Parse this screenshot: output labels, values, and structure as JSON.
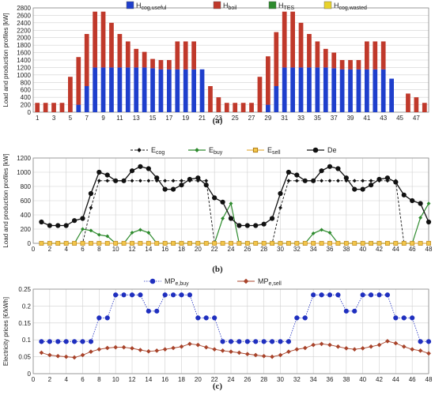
{
  "chart_data": [
    {
      "type": "bar",
      "panel_label": "(a)",
      "ylabel": "Load and production profiles [kW]",
      "ylim": [
        0,
        2800
      ],
      "yticks": [
        0,
        200,
        400,
        600,
        800,
        1000,
        1200,
        1400,
        1600,
        1800,
        2000,
        2200,
        2400,
        2600,
        2800
      ],
      "x": [
        1,
        2,
        3,
        4,
        5,
        6,
        7,
        8,
        9,
        10,
        11,
        12,
        13,
        14,
        15,
        16,
        17,
        18,
        19,
        20,
        21,
        22,
        23,
        24,
        25,
        26,
        27,
        28,
        29,
        30,
        31,
        32,
        33,
        34,
        35,
        36,
        37,
        38,
        39,
        40,
        41,
        42,
        43,
        44,
        45,
        46,
        47,
        48
      ],
      "xtick_labels": [
        "1",
        "3",
        "5",
        "7",
        "9",
        "11",
        "13",
        "15",
        "17",
        "19",
        "21",
        "23",
        "25",
        "27",
        "29",
        "31",
        "33",
        "35",
        "37",
        "39",
        "41",
        "43",
        "45",
        "47"
      ],
      "legend_position": "top",
      "series": [
        {
          "name": "H cog,useful",
          "color": "#1f3fcc",
          "values": [
            0,
            0,
            0,
            0,
            0,
            200,
            700,
            1200,
            1200,
            1200,
            1200,
            1200,
            1200,
            1200,
            1180,
            1150,
            1150,
            1150,
            1150,
            1150,
            1150,
            0,
            0,
            0,
            0,
            0,
            0,
            0,
            200,
            700,
            1200,
            1200,
            1200,
            1200,
            1200,
            1200,
            1180,
            1150,
            1150,
            1150,
            1150,
            1150,
            1150,
            900,
            0,
            0,
            0,
            0
          ]
        },
        {
          "name": "H boil",
          "color": "#c0392b",
          "values": [
            250,
            250,
            250,
            250,
            950,
            1280,
            1400,
            1500,
            1500,
            1200,
            900,
            700,
            500,
            420,
            250,
            250,
            250,
            750,
            750,
            750,
            0,
            700,
            400,
            250,
            250,
            250,
            250,
            950,
            1300,
            1450,
            1500,
            1500,
            1200,
            900,
            700,
            500,
            420,
            250,
            250,
            250,
            750,
            750,
            750,
            0,
            0,
            500,
            400,
            250
          ]
        },
        {
          "name": "H TES",
          "color": "#2e8b2e",
          "values": [
            0,
            0,
            0,
            0,
            0,
            0,
            0,
            0,
            0,
            0,
            0,
            0,
            0,
            0,
            0,
            0,
            0,
            0,
            0,
            0,
            0,
            0,
            0,
            0,
            0,
            0,
            0,
            0,
            0,
            0,
            0,
            0,
            0,
            0,
            0,
            0,
            0,
            0,
            0,
            0,
            0,
            0,
            0,
            0,
            0,
            0,
            0,
            0
          ]
        },
        {
          "name": "H cog,wasted",
          "color": "#e8d22c",
          "values": [
            0,
            0,
            0,
            0,
            0,
            0,
            0,
            0,
            0,
            0,
            0,
            0,
            0,
            0,
            0,
            0,
            0,
            0,
            0,
            0,
            0,
            0,
            0,
            0,
            0,
            0,
            0,
            0,
            0,
            0,
            0,
            0,
            0,
            0,
            0,
            0,
            0,
            0,
            0,
            0,
            0,
            0,
            0,
            0,
            0,
            0,
            0,
            0
          ]
        }
      ]
    },
    {
      "type": "line",
      "panel_label": "(b)",
      "ylabel": "Load and production profiles [kW]",
      "ylim": [
        0,
        1200
      ],
      "yticks": [
        0,
        200,
        400,
        600,
        800,
        1000,
        1200
      ],
      "xlim": [
        0,
        48
      ],
      "xticks": [
        0,
        2,
        4,
        6,
        8,
        10,
        12,
        14,
        16,
        18,
        20,
        22,
        24,
        26,
        28,
        30,
        32,
        34,
        36,
        38,
        40,
        42,
        44,
        46,
        48
      ],
      "x": [
        1,
        2,
        3,
        4,
        5,
        6,
        7,
        8,
        9,
        10,
        11,
        12,
        13,
        14,
        15,
        16,
        17,
        18,
        19,
        20,
        21,
        22,
        23,
        24,
        25,
        26,
        27,
        28,
        29,
        30,
        31,
        32,
        33,
        34,
        35,
        36,
        37,
        38,
        39,
        40,
        41,
        42,
        43,
        44,
        45,
        46,
        47,
        48
      ],
      "legend_position": "top",
      "series": [
        {
          "name": "E cog",
          "color": "#111111",
          "values": [
            0,
            0,
            0,
            0,
            0,
            0,
            500,
            880,
            880,
            880,
            880,
            880,
            880,
            880,
            880,
            880,
            880,
            880,
            880,
            880,
            880,
            0,
            0,
            0,
            0,
            0,
            0,
            0,
            0,
            500,
            880,
            880,
            880,
            880,
            880,
            880,
            880,
            880,
            880,
            880,
            880,
            880,
            880,
            880,
            0,
            0,
            0,
            0
          ]
        },
        {
          "name": "E buy",
          "color": "#2e8b2e",
          "values": [
            0,
            0,
            0,
            0,
            0,
            200,
            180,
            120,
            100,
            0,
            0,
            150,
            190,
            150,
            0,
            0,
            0,
            0,
            0,
            0,
            0,
            0,
            350,
            560,
            0,
            0,
            0,
            0,
            0,
            0,
            0,
            0,
            0,
            140,
            190,
            150,
            0,
            0,
            0,
            0,
            0,
            0,
            0,
            0,
            0,
            0,
            360,
            560
          ]
        },
        {
          "name": "E sell",
          "color": "#e2a21c",
          "values": [
            0,
            0,
            0,
            0,
            0,
            0,
            0,
            0,
            0,
            0,
            0,
            0,
            0,
            0,
            0,
            0,
            0,
            0,
            0,
            0,
            0,
            0,
            0,
            0,
            0,
            0,
            0,
            0,
            0,
            0,
            0,
            0,
            0,
            0,
            0,
            0,
            0,
            0,
            0,
            0,
            0,
            0,
            0,
            0,
            0,
            0,
            0,
            0
          ]
        },
        {
          "name": "De",
          "color": "#111111",
          "values": [
            300,
            250,
            250,
            250,
            320,
            350,
            700,
            1000,
            960,
            880,
            880,
            1020,
            1080,
            1050,
            920,
            760,
            760,
            820,
            900,
            920,
            820,
            640,
            580,
            350,
            250,
            250,
            250,
            270,
            350,
            700,
            1000,
            960,
            880,
            880,
            1020,
            1080,
            1050,
            920,
            760,
            760,
            820,
            900,
            920,
            860,
            680,
            600,
            560,
            300
          ]
        }
      ]
    },
    {
      "type": "line",
      "panel_label": "(c)",
      "ylabel": "Electricity prices [€/kWh]",
      "ylim": [
        0,
        0.25
      ],
      "yticks": [
        0,
        0.05,
        0.1,
        0.15,
        0.2,
        0.25
      ],
      "ytick_labels": [
        "0",
        "0.05",
        "0.1",
        "0.15",
        "0.2",
        "0.25"
      ],
      "xlim": [
        0,
        48
      ],
      "xticks": [
        0,
        2,
        4,
        6,
        8,
        10,
        12,
        14,
        16,
        18,
        20,
        22,
        24,
        26,
        28,
        30,
        32,
        34,
        36,
        38,
        40,
        42,
        44,
        46,
        48
      ],
      "x": [
        1,
        2,
        3,
        4,
        5,
        6,
        7,
        8,
        9,
        10,
        11,
        12,
        13,
        14,
        15,
        16,
        17,
        18,
        19,
        20,
        21,
        22,
        23,
        24,
        25,
        26,
        27,
        28,
        29,
        30,
        31,
        32,
        33,
        34,
        35,
        36,
        37,
        38,
        39,
        40,
        41,
        42,
        43,
        44,
        45,
        46,
        47,
        48
      ],
      "legend_position": "top",
      "series": [
        {
          "name": "MP e,buy",
          "color": "#1f2fbf",
          "values": [
            0.095,
            0.095,
            0.095,
            0.095,
            0.095,
            0.095,
            0.095,
            0.165,
            0.165,
            0.233,
            0.233,
            0.233,
            0.233,
            0.185,
            0.185,
            0.233,
            0.233,
            0.233,
            0.233,
            0.165,
            0.165,
            0.165,
            0.095,
            0.095,
            0.095,
            0.095,
            0.095,
            0.095,
            0.095,
            0.095,
            0.095,
            0.165,
            0.165,
            0.233,
            0.233,
            0.233,
            0.233,
            0.185,
            0.185,
            0.233,
            0.233,
            0.233,
            0.233,
            0.165,
            0.165,
            0.165,
            0.095,
            0.095
          ]
        },
        {
          "name": "MP e,sell",
          "color": "#a8432a",
          "values": [
            0.062,
            0.055,
            0.052,
            0.05,
            0.048,
            0.055,
            0.065,
            0.072,
            0.076,
            0.078,
            0.078,
            0.075,
            0.07,
            0.066,
            0.068,
            0.072,
            0.076,
            0.08,
            0.088,
            0.085,
            0.078,
            0.072,
            0.068,
            0.065,
            0.062,
            0.058,
            0.055,
            0.052,
            0.05,
            0.055,
            0.065,
            0.072,
            0.076,
            0.085,
            0.088,
            0.085,
            0.08,
            0.075,
            0.072,
            0.075,
            0.08,
            0.085,
            0.096,
            0.09,
            0.08,
            0.072,
            0.068,
            0.06
          ]
        }
      ]
    }
  ]
}
